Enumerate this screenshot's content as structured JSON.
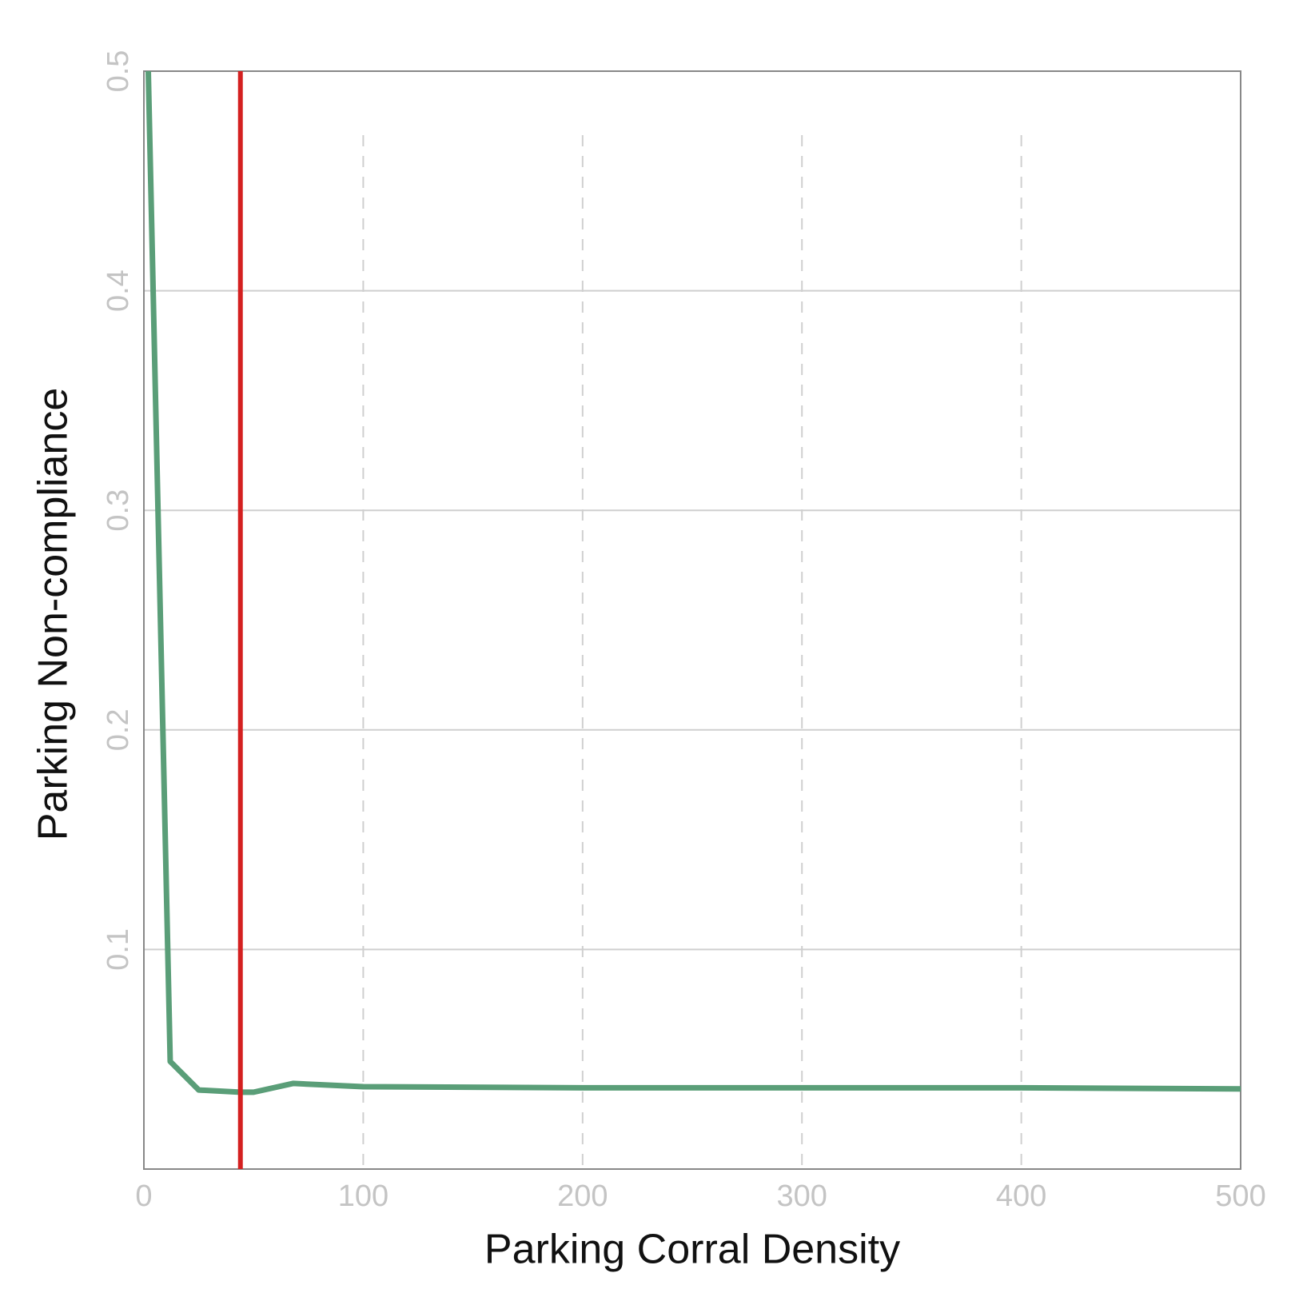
{
  "chart_data": {
    "type": "line",
    "xlabel": "Parking Corral Density",
    "ylabel": "Parking Non-compliance",
    "x": [
      2,
      12,
      25,
      44,
      50,
      68,
      100,
      200,
      300,
      400,
      500
    ],
    "series": [
      {
        "color": "#5a9e78",
        "values": [
          0.5,
          0.049,
          0.036,
          0.035,
          0.035,
          0.039,
          0.0375,
          0.037,
          0.037,
          0.037,
          0.0365
        ]
      }
    ],
    "vline": {
      "x": 44,
      "color": "#d42020"
    },
    "xlim": [
      0,
      500
    ],
    "xticks": [
      0,
      100,
      200,
      300,
      400,
      500
    ],
    "ylim": [
      0,
      0.5
    ],
    "yticks": [
      0.1,
      0.2,
      0.3,
      0.4,
      0.5
    ],
    "grid": true
  }
}
